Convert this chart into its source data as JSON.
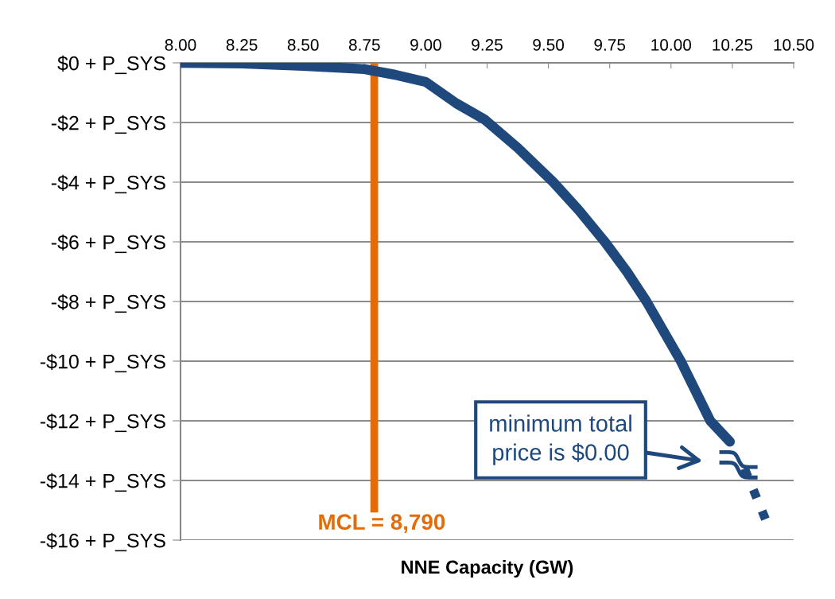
{
  "chart_data": {
    "type": "line",
    "xlabel": "NNE Capacity (GW)",
    "series": [
      {
        "color": "#1f497d",
        "line_style": "solid",
        "x": [
          8.0,
          8.25,
          8.5,
          8.75,
          8.875,
          9.0,
          9.125,
          9.24,
          9.375,
          9.52,
          9.625,
          9.73,
          9.82,
          9.9,
          9.97,
          10.04,
          10.1,
          10.16,
          10.24
        ],
        "values": [
          0,
          -0.02,
          -0.1,
          -0.21,
          -0.4,
          -0.64,
          -1.36,
          -1.9,
          -2.85,
          -4,
          -4.95,
          -6,
          -7.0,
          -8,
          -9.0,
          -10,
          -11.0,
          -12,
          -12.7
        ]
      },
      {
        "color": "#1f497d",
        "line_style": "dotted",
        "x": [
          10.3,
          10.39
        ],
        "values": [
          -13.6,
          -15.4
        ]
      }
    ],
    "xlim": [
      8.0,
      10.5
    ],
    "xticks": [
      {
        "value": 8.0,
        "label": "8.00"
      },
      {
        "value": 8.25,
        "label": "8.25"
      },
      {
        "value": 8.5,
        "label": "8.50"
      },
      {
        "value": 8.75,
        "label": "8.75"
      },
      {
        "value": 9.0,
        "label": "9.00"
      },
      {
        "value": 9.25,
        "label": "9.25"
      },
      {
        "value": 9.5,
        "label": "9.50"
      },
      {
        "value": 9.75,
        "label": "9.75"
      },
      {
        "value": 10.0,
        "label": "10.00"
      },
      {
        "value": 10.25,
        "label": "10.25"
      },
      {
        "value": 10.5,
        "label": "10.50"
      }
    ],
    "ylim": [
      -16,
      0
    ],
    "yticks": [
      {
        "value": 0,
        "label": "$0 + P_SYS"
      },
      {
        "value": -2,
        "label": "-$2 + P_SYS"
      },
      {
        "value": -4,
        "label": "-$4 + P_SYS"
      },
      {
        "value": -6,
        "label": "-$6 + P_SYS"
      },
      {
        "value": -8,
        "label": "-$8 + P_SYS"
      },
      {
        "value": -10,
        "label": "-$10 + P_SYS"
      },
      {
        "value": -12,
        "label": "-$12 + P_SYS"
      },
      {
        "value": -14,
        "label": "-$14 + P_SYS"
      },
      {
        "value": -16,
        "label": "-$16 + P_SYS"
      }
    ],
    "grid": "y",
    "ref_lines": [
      {
        "axis": "x",
        "value": 8.79,
        "label": "MCL = 8,790",
        "color": "#e36c09"
      }
    ],
    "annotations": [
      "minimum total\nprice is $0.00"
    ]
  }
}
